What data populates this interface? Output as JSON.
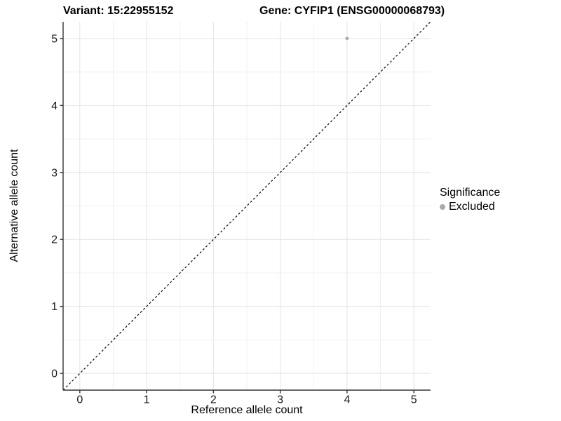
{
  "titles": {
    "variant": "Variant: 15:22955152",
    "gene": "Gene: CYFIP1 (ENSG00000068793)"
  },
  "chart_data": {
    "type": "scatter",
    "title_left": "Variant: 15:22955152",
    "title_right": "Gene: CYFIP1 (ENSG00000068793)",
    "xlabel": "Reference allele count",
    "ylabel": "Alternative allele count",
    "xlim": [
      -0.25,
      5.25
    ],
    "ylim": [
      -0.25,
      5.25
    ],
    "xticks": [
      0,
      1,
      2,
      3,
      4,
      5
    ],
    "yticks": [
      0,
      1,
      2,
      3,
      4,
      5
    ],
    "minor_ticks": [
      0.5,
      1.5,
      2.5,
      3.5,
      4.5
    ],
    "grid": true,
    "series": [
      {
        "name": "Excluded",
        "color": "#aaaaaa",
        "points": [
          {
            "x": 4,
            "y": 5
          }
        ]
      }
    ],
    "reference_line": {
      "style": "dashed",
      "color": "#000000",
      "from": [
        -0.25,
        -0.25
      ],
      "to": [
        5.25,
        5.25
      ]
    },
    "legend": {
      "title": "Significance",
      "position": "right",
      "items": [
        {
          "label": "Excluded",
          "color": "#aaaaaa",
          "marker": "circle"
        }
      ]
    }
  },
  "colors": {
    "background": "#ffffff",
    "grid_major": "#e4e4e4",
    "grid_minor": "#f0f0f0",
    "axis_line": "#333333",
    "tick_label": "#1a1a1a",
    "point": "#aaaaaa"
  }
}
